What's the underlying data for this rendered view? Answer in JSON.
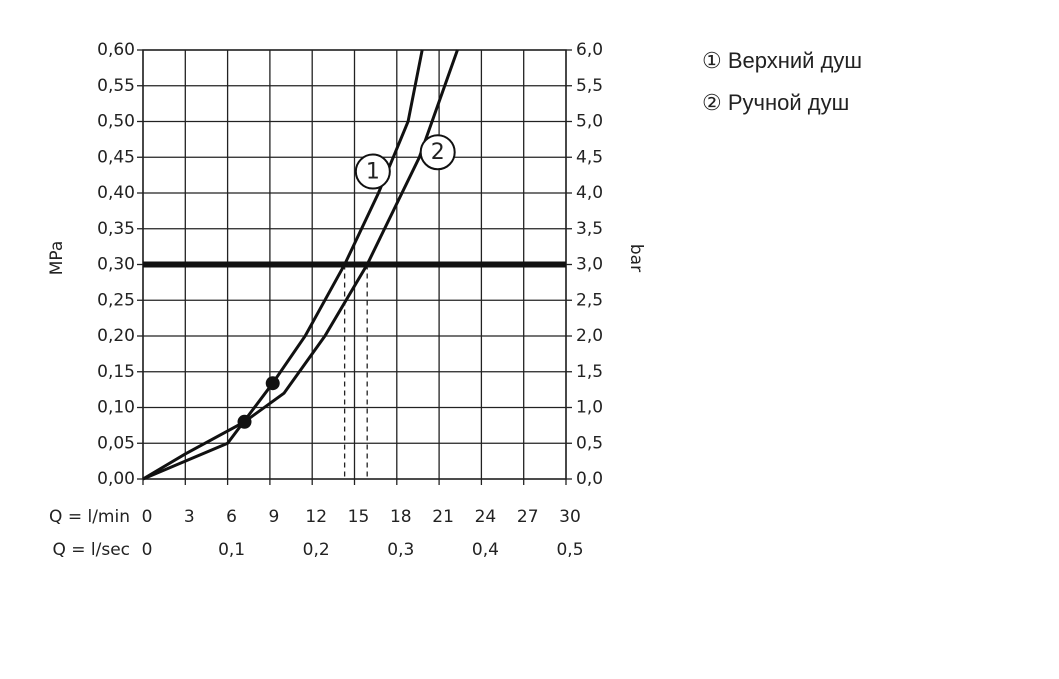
{
  "chart_data": {
    "type": "line",
    "x_label_rows": [
      "Q = l/min",
      "Q = l/sec"
    ],
    "ylabel": "MPa",
    "y2label": "bar",
    "xlim": [
      0,
      30
    ],
    "xticks": [
      0,
      3,
      6,
      9,
      12,
      15,
      18,
      21,
      24,
      27,
      30
    ],
    "x2lim": [
      0,
      0.5
    ],
    "x2ticks": [
      {
        "value": 0,
        "label": "0"
      },
      {
        "value": 0.1,
        "label": "0,1"
      },
      {
        "value": 0.2,
        "label": "0,2"
      },
      {
        "value": 0.3,
        "label": "0,3"
      },
      {
        "value": 0.4,
        "label": "0,4"
      },
      {
        "value": 0.5,
        "label": "0,5"
      }
    ],
    "ylim": [
      0,
      0.6
    ],
    "yticks": [
      {
        "value": 0,
        "label": "0,00"
      },
      {
        "value": 0.05,
        "label": "0,05"
      },
      {
        "value": 0.1,
        "label": "0,10"
      },
      {
        "value": 0.15,
        "label": "0,15"
      },
      {
        "value": 0.2,
        "label": "0,20"
      },
      {
        "value": 0.25,
        "label": "0,25"
      },
      {
        "value": 0.3,
        "label": "0,30"
      },
      {
        "value": 0.35,
        "label": "0,35"
      },
      {
        "value": 0.4,
        "label": "0,40"
      },
      {
        "value": 0.45,
        "label": "0,45"
      },
      {
        "value": 0.5,
        "label": "0,50"
      },
      {
        "value": 0.55,
        "label": "0,55"
      },
      {
        "value": 0.6,
        "label": "0,60"
      }
    ],
    "y2lim": [
      0,
      6
    ],
    "y2ticks": [
      {
        "value": 0,
        "label": "0,0"
      },
      {
        "value": 0.5,
        "label": "0,5"
      },
      {
        "value": 1,
        "label": "1,0"
      },
      {
        "value": 1.5,
        "label": "1,5"
      },
      {
        "value": 2,
        "label": "2,0"
      },
      {
        "value": 2.5,
        "label": "2,5"
      },
      {
        "value": 3,
        "label": "3,0"
      },
      {
        "value": 3.5,
        "label": "3,5"
      },
      {
        "value": 4,
        "label": "4,0"
      },
      {
        "value": 4.5,
        "label": "4,5"
      },
      {
        "value": 5,
        "label": "5,0"
      },
      {
        "value": 5.5,
        "label": "5,5"
      },
      {
        "value": 6,
        "label": "6,0"
      }
    ],
    "grid": true,
    "reference_y": 0.3,
    "series": [
      {
        "name": "① Верхний душ",
        "label": "1",
        "label_x": 16.3,
        "label_y": 0.43,
        "color": "#111111",
        "x": [
          0,
          3,
          6,
          9.2,
          11.5,
          14.3,
          16.7,
          18.8,
          19.8
        ],
        "values": [
          0,
          0.025,
          0.05,
          0.134,
          0.2,
          0.3,
          0.4,
          0.5,
          0.6
        ]
      },
      {
        "name": "② Ручной душ",
        "label": "2",
        "label_x": 20.9,
        "label_y": 0.457,
        "color": "#111111",
        "x": [
          0,
          3,
          7.2,
          10,
          12.9,
          15.9,
          19.6,
          22.3
        ],
        "values": [
          0,
          0.035,
          0.08,
          0.12,
          0.2,
          0.3,
          0.45,
          0.6
        ]
      }
    ],
    "points": [
      {
        "x": 9.2,
        "y": 0.134
      },
      {
        "x": 7.2,
        "y": 0.08
      }
    ]
  }
}
